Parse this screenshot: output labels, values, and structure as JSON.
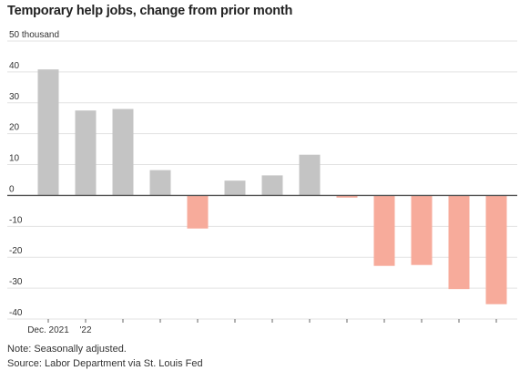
{
  "header": {
    "title": "Temporary help jobs, change from prior month"
  },
  "footer": {
    "note": "Note: Seasonally adjusted.",
    "source": "Source: Labor Department via St. Louis Fed"
  },
  "colors": {
    "positive": "#c4c4c4",
    "negative": "#f7ab9b",
    "grid": "#e3e3e3",
    "zero_line": "#555555",
    "text": "#333333"
  },
  "chart_data": {
    "type": "bar",
    "title": "Temporary help jobs, change from prior month",
    "ylabel": "",
    "xlabel": "",
    "y_unit_label": "50 thousand",
    "ylim": [
      -40,
      50
    ],
    "yticks": [
      50,
      40,
      30,
      20,
      10,
      0,
      -10,
      -20,
      -30,
      -40
    ],
    "ytick_labels": [
      "50 thousand",
      "40",
      "30",
      "20",
      "10",
      "0",
      "-10",
      "-20",
      "-30",
      "-40"
    ],
    "grid": true,
    "categories": [
      "Dec. 2021",
      "'22",
      "",
      "",
      "",
      "",
      "",
      "",
      "",
      "",
      "",
      "",
      ""
    ],
    "values": [
      40.8,
      27.5,
      28.0,
      8.2,
      -10.7,
      4.8,
      6.5,
      13.2,
      -0.7,
      -22.8,
      -22.5,
      -30.3,
      -35.2
    ]
  }
}
